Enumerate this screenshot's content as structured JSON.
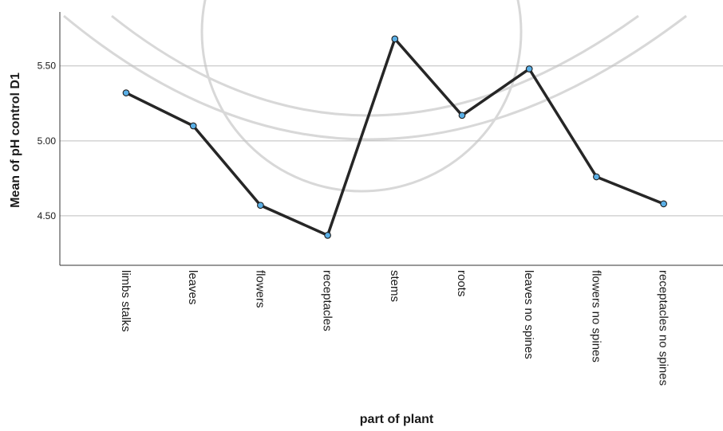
{
  "chart_data": {
    "type": "line",
    "title": "",
    "xlabel": "part of plant",
    "ylabel": "Mean of pH control D1",
    "categories": [
      "limbs stalks",
      "leaves",
      "flowers",
      "receptacles",
      "stems",
      "roots",
      "leaves no spines",
      "flowers no spines",
      "receptacles no spines"
    ],
    "series": [
      {
        "values": [
          5.32,
          5.1,
          4.57,
          4.37,
          5.68,
          5.17,
          5.48,
          4.76,
          4.58
        ]
      }
    ],
    "yticks": [
      "4.50",
      "5.00",
      "5.50"
    ],
    "ylim": [
      4.17,
      5.86
    ],
    "grid": "horizontal",
    "line_color": "#262626",
    "marker_color": "#5aafe6"
  }
}
